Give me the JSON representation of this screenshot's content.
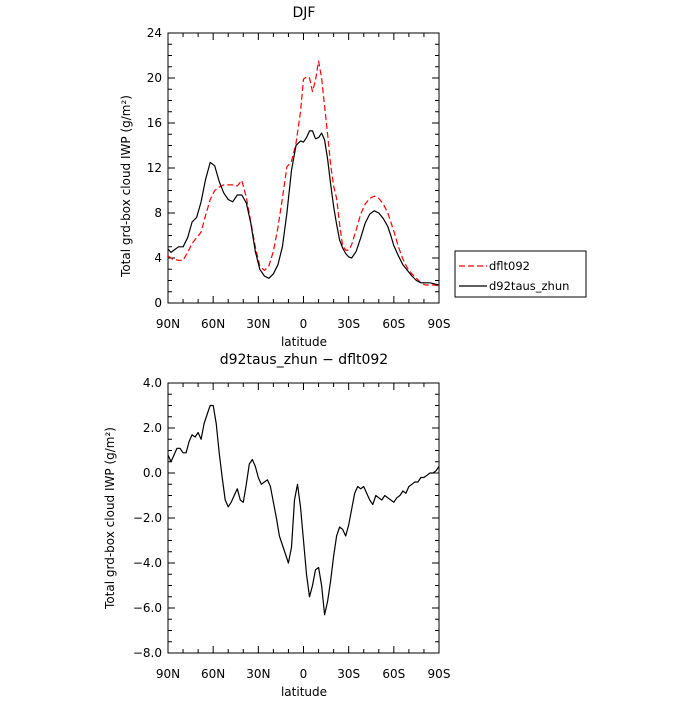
{
  "chart_data": [
    {
      "type": "line",
      "title": "DJF",
      "xlabel": "latitude",
      "ylabel": "Total grd-box cloud IWP (g/m²)",
      "xlim": [
        90,
        -90
      ],
      "ylim": [
        0,
        24
      ],
      "x_ticks": [
        "90N",
        "60N",
        "30N",
        "0",
        "30S",
        "60S",
        "90S"
      ],
      "y_ticks": [
        "0",
        "4",
        "8",
        "12",
        "16",
        "20",
        "24"
      ],
      "legend_position": "right",
      "series": [
        {
          "name": "dflt092",
          "color": "#ff0000",
          "dash": "dashed",
          "x": [
            90,
            87,
            83,
            80,
            77,
            74,
            71,
            68,
            65,
            62,
            59,
            56,
            53,
            50,
            47,
            44,
            41,
            38,
            35,
            32,
            29,
            26,
            23,
            20,
            17,
            14,
            11,
            8,
            5,
            2,
            0,
            -2,
            -4,
            -6,
            -8,
            -10,
            -12,
            -14,
            -16,
            -18,
            -20,
            -22,
            -24,
            -26,
            -28,
            -30,
            -32,
            -35,
            -38,
            -41,
            -44,
            -47,
            -50,
            -53,
            -56,
            -58,
            -60,
            -63,
            -66,
            -69,
            -72,
            -75,
            -78,
            -81,
            -84,
            -87,
            -90
          ],
          "y": [
            4.2,
            3.9,
            3.8,
            3.8,
            4.5,
            5.3,
            5.8,
            6.3,
            7.8,
            9.2,
            10.0,
            10.3,
            10.5,
            10.5,
            10.5,
            10.4,
            10.9,
            9.4,
            7.2,
            5.0,
            3.3,
            2.9,
            3.3,
            4.6,
            6.7,
            9.3,
            12.1,
            12.6,
            14.2,
            17.0,
            19.9,
            20.1,
            20.0,
            18.8,
            19.8,
            21.5,
            20.0,
            17.5,
            15.0,
            12.3,
            10.4,
            9.3,
            7.0,
            5.1,
            4.7,
            4.7,
            5.2,
            6.5,
            7.9,
            8.8,
            9.3,
            9.5,
            9.3,
            8.8,
            8.0,
            7.2,
            6.4,
            5.0,
            3.9,
            3.1,
            2.6,
            2.2,
            1.8,
            1.6,
            1.6,
            1.6,
            1.5
          ]
        },
        {
          "name": "d92taus_zhun",
          "color": "#000000",
          "dash": "solid",
          "x": [
            90,
            88,
            86,
            83,
            80,
            77,
            74,
            71,
            68,
            65,
            62,
            59,
            56,
            53,
            50,
            47,
            44,
            41,
            38,
            35,
            32,
            29,
            26,
            23,
            20,
            17,
            14,
            11,
            8,
            5,
            2,
            0,
            -2,
            -4,
            -6,
            -8,
            -10,
            -12,
            -14,
            -16,
            -18,
            -20,
            -22,
            -24,
            -26,
            -28,
            -30,
            -32,
            -35,
            -38,
            -41,
            -44,
            -47,
            -50,
            -53,
            -56,
            -58,
            -60,
            -63,
            -66,
            -69,
            -72,
            -75,
            -78,
            -81,
            -84,
            -87,
            -90
          ],
          "y": [
            4.8,
            4.5,
            4.7,
            5.0,
            5.0,
            5.8,
            7.2,
            7.6,
            9.0,
            11.0,
            12.5,
            12.2,
            10.8,
            9.8,
            9.2,
            9.0,
            9.6,
            9.6,
            8.9,
            7.1,
            4.6,
            3.0,
            2.4,
            2.2,
            2.6,
            3.4,
            5.0,
            8.0,
            11.8,
            14.0,
            14.4,
            14.3,
            14.7,
            15.3,
            15.3,
            14.6,
            14.7,
            15.1,
            14.5,
            12.8,
            10.6,
            8.6,
            7.0,
            5.6,
            4.9,
            4.4,
            4.1,
            4.0,
            4.6,
            5.8,
            7.1,
            7.9,
            8.2,
            8.0,
            7.5,
            6.8,
            6.0,
            5.1,
            4.2,
            3.4,
            2.9,
            2.4,
            2.0,
            1.8,
            1.8,
            1.8,
            1.7,
            1.6
          ]
        }
      ]
    },
    {
      "type": "line",
      "title": "d92taus_zhun − dflt092",
      "xlabel": "latitude",
      "ylabel": "Total grd-box cloud IWP (g/m²)",
      "xlim": [
        90,
        -90
      ],
      "ylim": [
        -8,
        4
      ],
      "x_ticks": [
        "90N",
        "60N",
        "30N",
        "0",
        "30S",
        "60S",
        "90S"
      ],
      "y_ticks": [
        "−8.0",
        "−6.0",
        "−4.0",
        "−2.0",
        "0.0",
        "2.0",
        "4.0"
      ],
      "series": [
        {
          "color": "#000000",
          "dash": "solid",
          "x": [
            90,
            88,
            86,
            84,
            82,
            80,
            78,
            76,
            74,
            72,
            70,
            68,
            66,
            64,
            62,
            60,
            58,
            56,
            54,
            52,
            50,
            48,
            46,
            44,
            42,
            40,
            38,
            36,
            34,
            32,
            30,
            28,
            26,
            24,
            22,
            20,
            18,
            16,
            14,
            12,
            10,
            8,
            6,
            4,
            2,
            0,
            -2,
            -4,
            -6,
            -8,
            -10,
            -12,
            -14,
            -16,
            -18,
            -20,
            -22,
            -24,
            -26,
            -28,
            -30,
            -32,
            -34,
            -36,
            -38,
            -40,
            -42,
            -44,
            -46,
            -48,
            -50,
            -52,
            -54,
            -56,
            -58,
            -60,
            -62,
            -64,
            -66,
            -68,
            -70,
            -72,
            -74,
            -76,
            -78,
            -80,
            -82,
            -84,
            -86,
            -88,
            -90
          ],
          "y": [
            0.8,
            0.5,
            0.8,
            1.1,
            1.1,
            0.9,
            0.9,
            1.4,
            1.7,
            1.6,
            1.8,
            1.5,
            2.2,
            2.6,
            3.0,
            3.0,
            2.2,
            0.9,
            -0.2,
            -1.2,
            -1.5,
            -1.3,
            -1.0,
            -0.7,
            -1.2,
            -1.3,
            -0.5,
            0.4,
            0.6,
            0.3,
            -0.2,
            -0.5,
            -0.4,
            -0.3,
            -0.6,
            -1.3,
            -2.0,
            -2.8,
            -3.2,
            -3.6,
            -4.0,
            -3.3,
            -1.2,
            -0.5,
            -1.5,
            -3.0,
            -4.5,
            -5.5,
            -5.0,
            -4.3,
            -4.2,
            -5.0,
            -6.3,
            -5.7,
            -4.8,
            -3.7,
            -2.8,
            -2.4,
            -2.5,
            -2.8,
            -2.3,
            -1.6,
            -0.9,
            -0.6,
            -0.7,
            -0.6,
            -0.9,
            -1.2,
            -1.4,
            -1.0,
            -1.1,
            -1.2,
            -1.0,
            -1.1,
            -1.2,
            -1.3,
            -1.1,
            -1.0,
            -0.8,
            -0.9,
            -0.6,
            -0.5,
            -0.4,
            -0.4,
            -0.2,
            -0.2,
            -0.1,
            0.0,
            0.0,
            0.1,
            0.3
          ]
        }
      ]
    }
  ]
}
